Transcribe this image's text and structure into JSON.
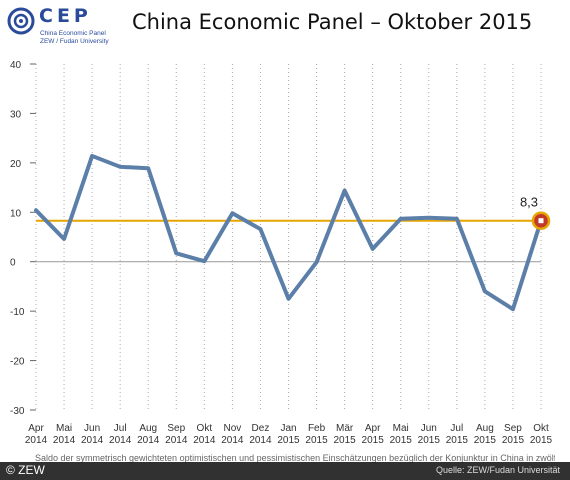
{
  "logo": {
    "text": "CEP",
    "subtitle_line1": "China Economic Panel",
    "subtitle_line2": "ZEW / Fudan University"
  },
  "title": "China Economic Panel – Oktober 2015",
  "footnote": "Saldo der symmetrisch gewichteten optimistischen und pessimistischen Einschätzungen bezüglich der Konjunktur in China in zwölf Monaten.",
  "source": "Quelle: ZEW/Fudan Universität",
  "copyright": "© ZEW",
  "colors": {
    "line": "#5b7fa8",
    "reference": "#e6a500",
    "marker_fill": "#c0392b",
    "marker_ring": "#e6a500",
    "logo": "#2a4a9a"
  },
  "chart_data": {
    "type": "line",
    "categories": [
      [
        "Apr",
        "2014"
      ],
      [
        "Mai",
        "2014"
      ],
      [
        "Jun",
        "2014"
      ],
      [
        "Jul",
        "2014"
      ],
      [
        "Aug",
        "2014"
      ],
      [
        "Sep",
        "2014"
      ],
      [
        "Okt",
        "2014"
      ],
      [
        "Nov",
        "2014"
      ],
      [
        "Dez",
        "2014"
      ],
      [
        "Jan",
        "2015"
      ],
      [
        "Feb",
        "2015"
      ],
      [
        "Mär",
        "2015"
      ],
      [
        "Apr",
        "2015"
      ],
      [
        "Mai",
        "2015"
      ],
      [
        "Jun",
        "2015"
      ],
      [
        "Jul",
        "2015"
      ],
      [
        "Aug",
        "2015"
      ],
      [
        "Sep",
        "2015"
      ],
      [
        "Okt",
        "2015"
      ]
    ],
    "series": [
      {
        "values": [
          10.4,
          4.6,
          21.4,
          19.2,
          18.9,
          1.7,
          0.1,
          9.8,
          6.6,
          -7.5,
          -0.1,
          14.4,
          2.6,
          8.7,
          8.9,
          8.7,
          -6.0,
          -9.6,
          8.3
        ]
      }
    ],
    "ylim": [
      -30,
      40
    ],
    "yticks": [
      "40",
      "30",
      "20",
      "10",
      "0",
      "-10",
      "-20",
      "-30"
    ],
    "reference_value": 8.3,
    "reference_label": "8,3",
    "xlabel": "",
    "ylabel": "",
    "grid": "vertical dotted"
  }
}
